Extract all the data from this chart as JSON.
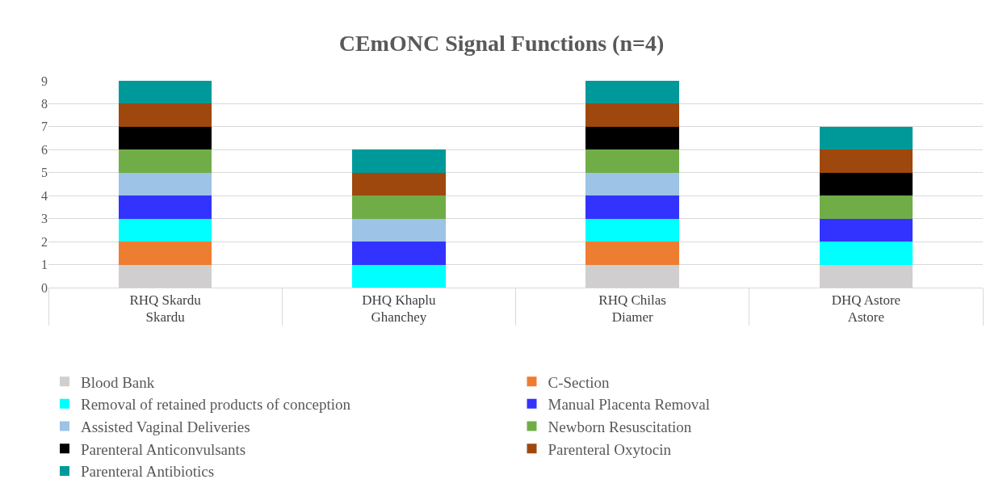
{
  "chart_data": {
    "type": "bar",
    "title": "CEmONC Signal Functions (n=4)",
    "stacked": true,
    "categories": [
      "RHQ Skardu\nSkardu",
      "DHQ Khaplu\nGhanchey",
      "RHQ Chilas\nDiamer",
      "DHQ Astore\nAstore"
    ],
    "series": [
      {
        "name": "Blood Bank",
        "color": "#d0cece",
        "values": [
          1,
          0,
          1,
          1
        ]
      },
      {
        "name": "C-Section",
        "color": "#ed7d31",
        "values": [
          1,
          0,
          1,
          0
        ]
      },
      {
        "name": "Removal of retained products of conception",
        "color": "#00ffff",
        "values": [
          1,
          1,
          1,
          1
        ]
      },
      {
        "name": "Manual Placenta Removal",
        "color": "#3333ff",
        "values": [
          1,
          1,
          1,
          1
        ]
      },
      {
        "name": "Assisted Vaginal Deliveries",
        "color": "#9dc3e6",
        "values": [
          1,
          1,
          1,
          0
        ]
      },
      {
        "name": "Newborn Resuscitation",
        "color": "#70ad47",
        "values": [
          1,
          1,
          1,
          1
        ]
      },
      {
        "name": "Parenteral Anticonvulsants",
        "color": "#000000",
        "values": [
          1,
          0,
          1,
          1
        ]
      },
      {
        "name": "Parenteral Oxytocin",
        "color": "#9e480e",
        "values": [
          1,
          1,
          1,
          1
        ]
      },
      {
        "name": "Parenteral Antibiotics",
        "color": "#009999",
        "values": [
          1,
          1,
          1,
          1
        ]
      }
    ],
    "ylim": [
      0,
      9
    ],
    "yticks": [
      0,
      1,
      2,
      3,
      4,
      5,
      6,
      7,
      8,
      9
    ],
    "grid": "y",
    "legend": "bottom"
  }
}
